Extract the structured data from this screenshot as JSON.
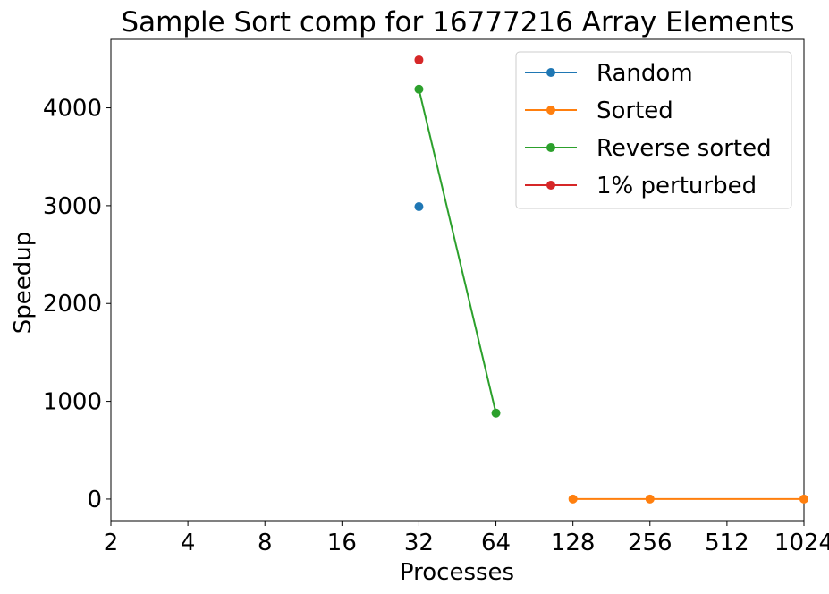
{
  "chart_data": {
    "type": "line",
    "title": "Sample Sort comp for 16777216 Array Elements",
    "xlabel": "Processes",
    "ylabel": "Speedup",
    "x_scale": "log2",
    "x_ticks": [
      2,
      4,
      8,
      16,
      32,
      64,
      128,
      256,
      512,
      1024
    ],
    "x_tick_labels": [
      "2",
      "4",
      "8",
      "16",
      "32",
      "64",
      "128",
      "256",
      "512",
      "1024"
    ],
    "xlim": [
      2,
      1024
    ],
    "ylim": [
      -220,
      4700
    ],
    "y_ticks": [
      0,
      1000,
      2000,
      3000,
      4000
    ],
    "y_tick_labels": [
      "0",
      "1000",
      "2000",
      "3000",
      "4000"
    ],
    "grid": false,
    "legend_position": "upper-right",
    "series": [
      {
        "name": "Random",
        "color": "#1f77b4",
        "points": [
          [
            32,
            2990
          ]
        ]
      },
      {
        "name": "Sorted",
        "color": "#ff7f0e",
        "points": [
          [
            128,
            1
          ],
          [
            256,
            1
          ],
          [
            1024,
            1
          ]
        ]
      },
      {
        "name": "Reverse sorted",
        "color": "#2ca02c",
        "points": [
          [
            32,
            4190
          ],
          [
            64,
            880
          ]
        ]
      },
      {
        "name": "1% perturbed",
        "color": "#d62728",
        "points": [
          [
            32,
            4490
          ]
        ]
      }
    ]
  }
}
